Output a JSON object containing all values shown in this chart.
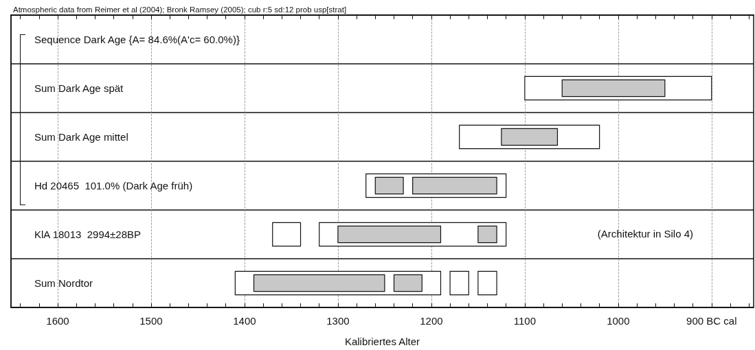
{
  "chart_data": {
    "type": "bar",
    "orientation": "horizontal",
    "title": "Atmospheric data from Reimer et al (2004); Bronk Ramsey (2005); cub r:5 sd:12 prob usp[strat]",
    "xlabel": "Kalibriertes Alter",
    "categories": [
      "Sequence Dark Age {A= 84.6%(A'c= 60.0%)}",
      "Sum Dark Age spät",
      "Sum Dark Age mittel",
      "Hd 20465  101.0% (Dark Age früh)",
      "KlA 18013  2994±28BP",
      "Sum Nordtor"
    ],
    "series": [
      {
        "color": "#ffffff",
        "base": [
          null,
          900,
          1020,
          1120,
          1120,
          1190
        ],
        "values": [
          null,
          200,
          150,
          150,
          200,
          220
        ]
      },
      {
        "color": "#ffffff",
        "base": [
          null,
          null,
          null,
          null,
          1340,
          1160
        ],
        "values": [
          null,
          null,
          null,
          null,
          30,
          20
        ]
      },
      {
        "color": "#ffffff",
        "base": [
          null,
          null,
          null,
          null,
          null,
          1130
        ],
        "values": [
          null,
          null,
          null,
          null,
          null,
          20
        ]
      },
      {
        "color": "#c8c8c8",
        "base": [
          null,
          950,
          1065,
          1230,
          1190,
          1250
        ],
        "values": [
          null,
          110,
          60,
          30,
          110,
          140
        ]
      },
      {
        "color": "#c8c8c8",
        "base": [
          null,
          null,
          null,
          1130,
          1130,
          1210
        ],
        "values": [
          null,
          null,
          null,
          90,
          20,
          30
        ]
      }
    ],
    "annotations": [
      "(Architektur in Silo 4)"
    ],
    "xlim": [
      1650,
      855
    ],
    "xticks": [
      {
        "value": 1640,
        "label": null
      },
      {
        "value": 1620,
        "label": null
      },
      1600,
      {
        "value": 1580,
        "label": null
      },
      {
        "value": 1560,
        "label": null
      },
      {
        "value": 1540,
        "label": null
      },
      {
        "value": 1520,
        "label": null
      },
      1500,
      {
        "value": 1480,
        "label": null
      },
      {
        "value": 1460,
        "label": null
      },
      {
        "value": 1440,
        "label": null
      },
      {
        "value": 1420,
        "label": null
      },
      1400,
      {
        "value": 1380,
        "label": null
      },
      {
        "value": 1360,
        "label": null
      },
      {
        "value": 1340,
        "label": null
      },
      {
        "value": 1320,
        "label": null
      },
      1300,
      {
        "value": 1280,
        "label": null
      },
      {
        "value": 1260,
        "label": null
      },
      {
        "value": 1240,
        "label": null
      },
      {
        "value": 1220,
        "label": null
      },
      1200,
      {
        "value": 1180,
        "label": null
      },
      {
        "value": 1160,
        "label": null
      },
      {
        "value": 1140,
        "label": null
      },
      {
        "value": 1120,
        "label": null
      },
      1100,
      {
        "value": 1080,
        "label": null
      },
      {
        "value": 1060,
        "label": null
      },
      {
        "value": 1040,
        "label": null
      },
      {
        "value": 1020,
        "label": null
      },
      1000,
      {
        "value": 980,
        "label": null
      },
      {
        "value": 960,
        "label": null
      },
      {
        "value": 940,
        "label": null
      },
      {
        "value": 920,
        "label": null
      },
      {
        "value": 900,
        "label": "900 BC cal"
      },
      {
        "value": 880,
        "label": null
      },
      {
        "value": 860,
        "label": null
      }
    ],
    "grid": true
  }
}
